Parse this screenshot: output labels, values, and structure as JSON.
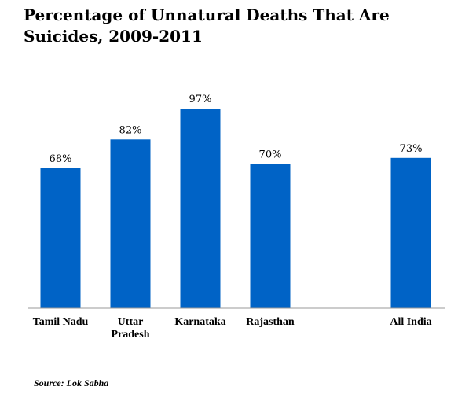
{
  "title": "Percentage of Unnatural Deaths That Are Suicides, 2009-2011",
  "source": "Source: Lok Sabha",
  "chart_data": {
    "type": "bar",
    "title": "Percentage of Unnatural Deaths That Are Suicides, 2009-2011",
    "categories": [
      "Tamil Nadu",
      "Uttar Pradesh",
      "Karnataka",
      "Rajasthan",
      "All India"
    ],
    "category_label_lines": [
      [
        "Tamil Nadu"
      ],
      [
        "Uttar",
        "Pradesh"
      ],
      [
        "Karnataka"
      ],
      [
        "Rajasthan"
      ],
      [
        "All India"
      ]
    ],
    "values": [
      68,
      82,
      97,
      70,
      73
    ],
    "data_labels": [
      "68%",
      "82%",
      "97%",
      "70%",
      "73%"
    ],
    "ylim": [
      0,
      100
    ],
    "grid": false,
    "bar_color": "#0063c6",
    "axis_color": "#999999"
  }
}
